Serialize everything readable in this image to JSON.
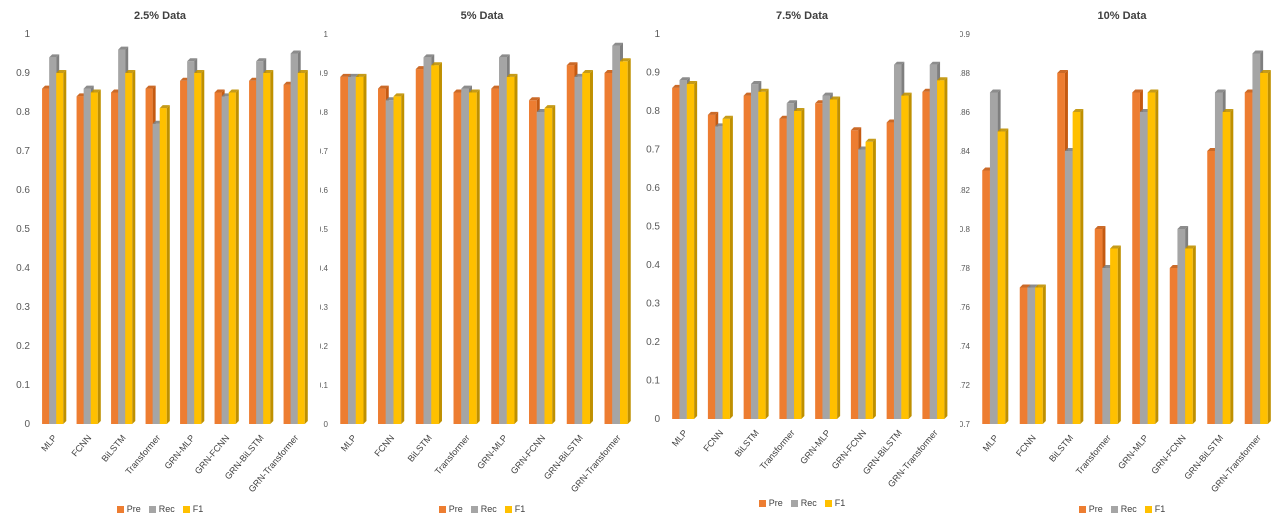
{
  "series_names": [
    "Pre",
    "Rec",
    "F1"
  ],
  "colors": {
    "Pre": "#ED7D31",
    "Rec": "#A5A5A5",
    "F1": "#FFC000"
  },
  "chart_data": [
    {
      "type": "bar",
      "title": "2.5% Data",
      "categories": [
        "MLP",
        "FCNN",
        "BiLSTM",
        "Transformer",
        "GRN-MLP",
        "GRN-FCNN",
        "GRN-BiLSTM",
        "GRN-Transformer"
      ],
      "series": [
        {
          "name": "Pre",
          "values": [
            0.86,
            0.84,
            0.85,
            0.86,
            0.88,
            0.85,
            0.88,
            0.87
          ]
        },
        {
          "name": "Rec",
          "values": [
            0.94,
            0.86,
            0.96,
            0.77,
            0.93,
            0.84,
            0.93,
            0.95
          ]
        },
        {
          "name": "F1",
          "values": [
            0.9,
            0.85,
            0.9,
            0.81,
            0.9,
            0.85,
            0.9,
            0.9
          ]
        }
      ],
      "ylim": [
        0,
        1
      ],
      "yticks": [
        "0",
        "0.1",
        "0.2",
        "0.3",
        "0.4",
        "0.5",
        "0.6",
        "0.7",
        "0.8",
        "0.9",
        "1"
      ],
      "legend": "bottom"
    },
    {
      "type": "bar",
      "title": "5% Data",
      "categories": [
        "MLP",
        "FCNN",
        "BiLSTM",
        "Transformer",
        "GRN-MLP",
        "GRN-FCNN",
        "GRN-BiLSTM",
        "GRN-Transformer"
      ],
      "series": [
        {
          "name": "Pre",
          "values": [
            0.89,
            0.86,
            0.91,
            0.85,
            0.86,
            0.83,
            0.92,
            0.9
          ]
        },
        {
          "name": "Rec",
          "values": [
            0.89,
            0.83,
            0.94,
            0.86,
            0.94,
            0.8,
            0.89,
            0.97
          ]
        },
        {
          "name": "F1",
          "values": [
            0.89,
            0.84,
            0.92,
            0.85,
            0.89,
            0.81,
            0.9,
            0.93
          ]
        }
      ],
      "ylim": [
        0,
        1
      ],
      "yticks": [
        "0",
        "0.1",
        "0.2",
        "0.3",
        "0.4",
        "0.5",
        "0.6",
        "0.7",
        "0.8",
        "0.9",
        "1"
      ],
      "legend": "bottom"
    },
    {
      "type": "bar",
      "title": "7.5% Data",
      "categories": [
        "MLP",
        "FCNN",
        "BiLSTM",
        "Transformer",
        "GRN-MLP",
        "GRN-FCNN",
        "GRN-BiLSTM",
        "GRN-Transformer"
      ],
      "series": [
        {
          "name": "Pre",
          "values": [
            0.86,
            0.79,
            0.84,
            0.78,
            0.82,
            0.75,
            0.77,
            0.85
          ]
        },
        {
          "name": "Rec",
          "values": [
            0.88,
            0.76,
            0.87,
            0.82,
            0.84,
            0.7,
            0.92,
            0.92
          ]
        },
        {
          "name": "F1",
          "values": [
            0.87,
            0.78,
            0.85,
            0.8,
            0.83,
            0.72,
            0.84,
            0.88
          ]
        }
      ],
      "ylim": [
        0,
        1
      ],
      "yticks": [
        "0",
        "0.1",
        "0.2",
        "0.3",
        "0.4",
        "0.5",
        "0.6",
        "0.7",
        "0.8",
        "0.9",
        "1"
      ],
      "legend": "bottom"
    },
    {
      "type": "bar",
      "title": "10% Data",
      "categories": [
        "MLP",
        "FCNN",
        "BiLSTM",
        "Transformer",
        "GRN-MLP",
        "GRN-FCNN",
        "GRN-BiLSTM",
        "GRN-Transformer"
      ],
      "series": [
        {
          "name": "Pre",
          "values": [
            0.83,
            0.77,
            0.88,
            0.8,
            0.87,
            0.78,
            0.84,
            0.87
          ]
        },
        {
          "name": "Rec",
          "values": [
            0.87,
            0.77,
            0.84,
            0.78,
            0.86,
            0.8,
            0.87,
            0.89
          ]
        },
        {
          "name": "F1",
          "values": [
            0.85,
            0.77,
            0.86,
            0.79,
            0.87,
            0.79,
            0.86,
            0.88
          ]
        }
      ],
      "ylim": [
        0.7,
        0.9
      ],
      "yticks": [
        "0.7",
        "0.72",
        "0.74",
        "0.76",
        "0.78",
        "0.8",
        "0.82",
        "0.84",
        "0.86",
        "0.88",
        "0.9"
      ],
      "legend": "bottom"
    }
  ]
}
